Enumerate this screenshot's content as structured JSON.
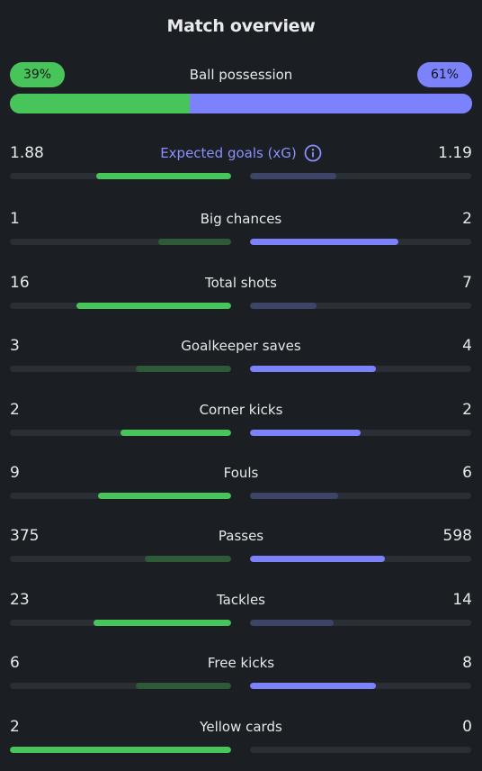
{
  "title": "Match overview",
  "possession": {
    "label": "Ball possession",
    "home_text": "39%",
    "away_text": "61%",
    "home_fraction": 0.39,
    "away_fraction": 0.61
  },
  "colors": {
    "home": "#48c55a",
    "home_muted": "#2f5a37",
    "away": "#7b82fc",
    "away_muted": "#3e4466",
    "track": "#2a2f35",
    "background": "#1b1f23"
  },
  "stats": [
    {
      "name": "Expected goals (xG)",
      "home": "1.88",
      "away": "1.19",
      "home_fraction": 0.61,
      "away_fraction": 0.39,
      "accent": true,
      "info_icon": "info-icon"
    },
    {
      "name": "Big chances",
      "home": "1",
      "away": "2",
      "home_fraction": 0.33,
      "away_fraction": 0.67
    },
    {
      "name": "Total shots",
      "home": "16",
      "away": "7",
      "home_fraction": 0.7,
      "away_fraction": 0.3
    },
    {
      "name": "Goalkeeper saves",
      "home": "3",
      "away": "4",
      "home_fraction": 0.43,
      "away_fraction": 0.57
    },
    {
      "name": "Corner kicks",
      "home": "2",
      "away": "2",
      "home_fraction": 0.5,
      "away_fraction": 0.5,
      "tie": true
    },
    {
      "name": "Fouls",
      "home": "9",
      "away": "6",
      "home_fraction": 0.6,
      "away_fraction": 0.4
    },
    {
      "name": "Passes",
      "home": "375",
      "away": "598",
      "home_fraction": 0.39,
      "away_fraction": 0.61
    },
    {
      "name": "Tackles",
      "home": "23",
      "away": "14",
      "home_fraction": 0.62,
      "away_fraction": 0.38
    },
    {
      "name": "Free kicks",
      "home": "6",
      "away": "8",
      "home_fraction": 0.43,
      "away_fraction": 0.57
    },
    {
      "name": "Yellow cards",
      "home": "2",
      "away": "0",
      "home_fraction": 1.0,
      "away_fraction": 0.0
    }
  ]
}
